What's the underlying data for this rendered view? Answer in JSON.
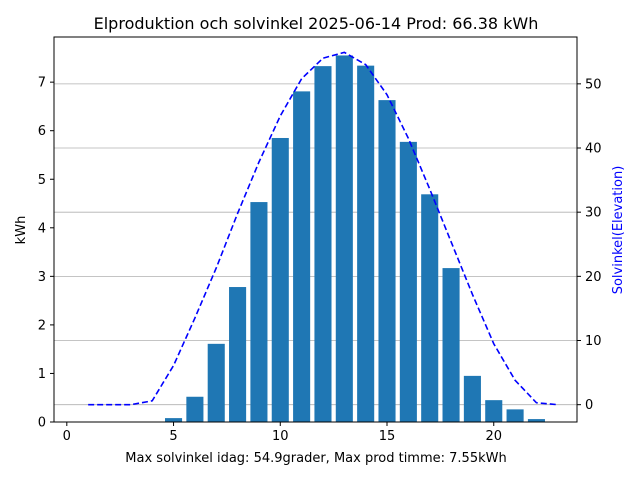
{
  "chart_data": {
    "type": "bar",
    "title": "Elproduktion och solvinkel 2025-06-14 Prod: 66.38 kWh",
    "xlabel": "Max solvinkel idag: 54.9grader, Max prod timme: 7.55kWh",
    "ylabel": "kWh",
    "y2label": "Solvinkel(Elevation)",
    "xlim": [
      -0.6,
      23.9
    ],
    "ylim": [
      0,
      7.93
    ],
    "y2lim": [
      -2.7,
      57.3
    ],
    "xticks": [
      0,
      5,
      10,
      15,
      20
    ],
    "yticks": [
      0,
      1,
      2,
      3,
      4,
      5,
      6,
      7
    ],
    "y2ticks": [
      0,
      10,
      20,
      30,
      40,
      50
    ],
    "grid": "horizontal lines at secondary axis ticks",
    "bar_series": {
      "name": "",
      "color": "#1f77b4",
      "x": [
        5,
        6,
        7,
        8,
        9,
        10,
        11,
        12,
        13,
        14,
        15,
        16,
        17,
        18,
        19,
        20,
        21,
        22
      ],
      "values": [
        0.08,
        0.52,
        1.61,
        2.78,
        4.53,
        5.85,
        6.81,
        7.33,
        7.55,
        7.34,
        6.63,
        5.77,
        4.69,
        3.17,
        0.95,
        0.45,
        0.26,
        0.06
      ]
    },
    "line_series": {
      "name": "",
      "color": "#0000ff",
      "style": "dashed",
      "x": [
        1,
        2,
        3,
        4,
        5,
        6,
        7,
        8,
        9,
        10,
        11,
        12,
        13,
        14,
        15,
        16,
        17,
        18,
        19,
        20,
        21,
        22,
        23
      ],
      "values": [
        0,
        0,
        0,
        0.6,
        6.1,
        13.5,
        21.3,
        29.8,
        37.8,
        45.0,
        50.8,
        54.0,
        54.9,
        53.0,
        48.3,
        41.5,
        33.6,
        25.4,
        17.2,
        9.5,
        3.8,
        0.3,
        0
      ]
    }
  }
}
